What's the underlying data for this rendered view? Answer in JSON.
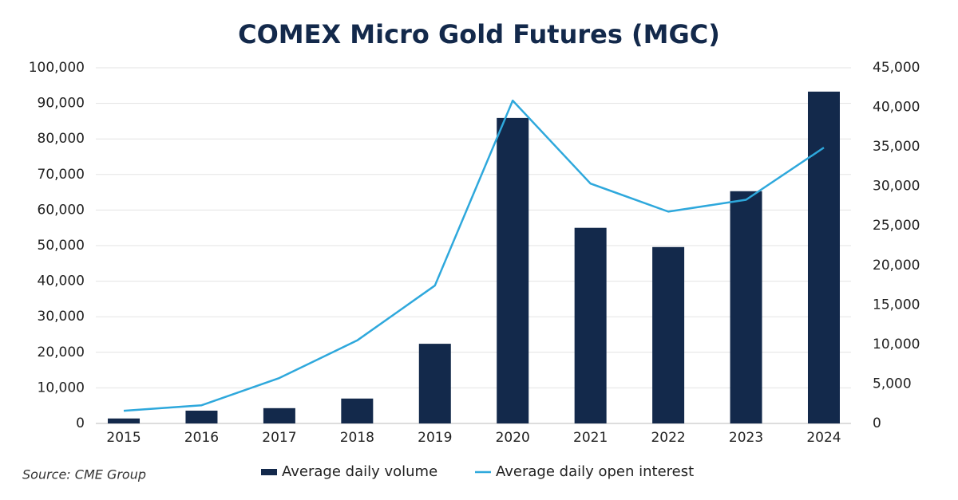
{
  "chart_data": {
    "type": "bar",
    "title": "COMEX Micro Gold Futures (MGC)",
    "source": "Source: CME Group",
    "categories": [
      "2015",
      "2016",
      "2017",
      "2018",
      "2019",
      "2020",
      "2021",
      "2022",
      "2023",
      "2024"
    ],
    "series": [
      {
        "name": "Average daily volume",
        "type": "bar",
        "color": "#13294b",
        "values": [
          1400,
          3600,
          4300,
          7000,
          22400,
          85900,
          55000,
          49600,
          65300,
          93300
        ]
      },
      {
        "name": "Average daily open interest",
        "type": "line",
        "axis": "y2",
        "color": "#2ea8dc",
        "values": [
          1600,
          2300,
          5750,
          10500,
          17450,
          40850,
          30350,
          26800,
          28300,
          34900
        ]
      }
    ],
    "ylim": [
      0,
      100000
    ],
    "yticks": [
      0,
      {
        "value": 10000,
        "label": "10,000"
      },
      {
        "value": 20000,
        "label": "20,000"
      },
      {
        "value": 30000,
        "label": "30,000"
      },
      {
        "value": 40000,
        "label": "40,000"
      },
      {
        "value": 50000,
        "label": "50,000"
      },
      {
        "value": 60000,
        "label": "60,000"
      },
      {
        "value": 70000,
        "label": "70,000"
      },
      {
        "value": 80000,
        "label": "80,000"
      },
      {
        "value": 90000,
        "label": "90,000"
      },
      {
        "value": 100000,
        "label": "100,000"
      }
    ],
    "y2lim": [
      0,
      45000
    ],
    "y2ticks": [
      0,
      {
        "value": 5000,
        "label": "5,000"
      },
      {
        "value": 10000,
        "label": "10,000"
      },
      {
        "value": 15000,
        "label": "15,000"
      },
      {
        "value": 20000,
        "label": "20,000"
      },
      {
        "value": 25000,
        "label": "25,000"
      },
      {
        "value": 30000,
        "label": "30,000"
      },
      {
        "value": 35000,
        "label": "35,000"
      },
      {
        "value": 40000,
        "label": "40,000"
      },
      {
        "value": 45000,
        "label": "45,000"
      }
    ],
    "grid": true
  }
}
